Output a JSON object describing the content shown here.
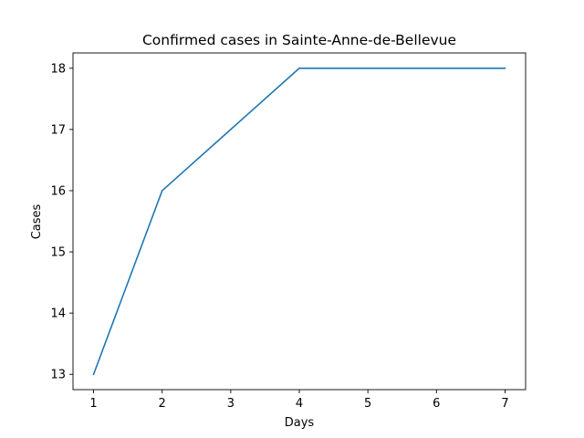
{
  "chart_data": {
    "type": "line",
    "title": "Confirmed cases in Sainte-Anne-de-Bellevue",
    "xlabel": "Days",
    "ylabel": "Cases",
    "x": [
      1,
      2,
      3,
      4,
      5,
      6,
      7
    ],
    "series": [
      {
        "values": [
          13,
          16,
          17,
          18,
          18,
          18,
          18
        ],
        "color": "#1f77b4"
      }
    ],
    "xlim": [
      0.7,
      7.3
    ],
    "ylim": [
      12.75,
      18.25
    ],
    "xticks": [
      "1",
      "2",
      "3",
      "4",
      "5",
      "6",
      "7"
    ],
    "yticks": [
      "13",
      "14",
      "15",
      "16",
      "17",
      "18"
    ],
    "grid": false,
    "legend": "none"
  }
}
